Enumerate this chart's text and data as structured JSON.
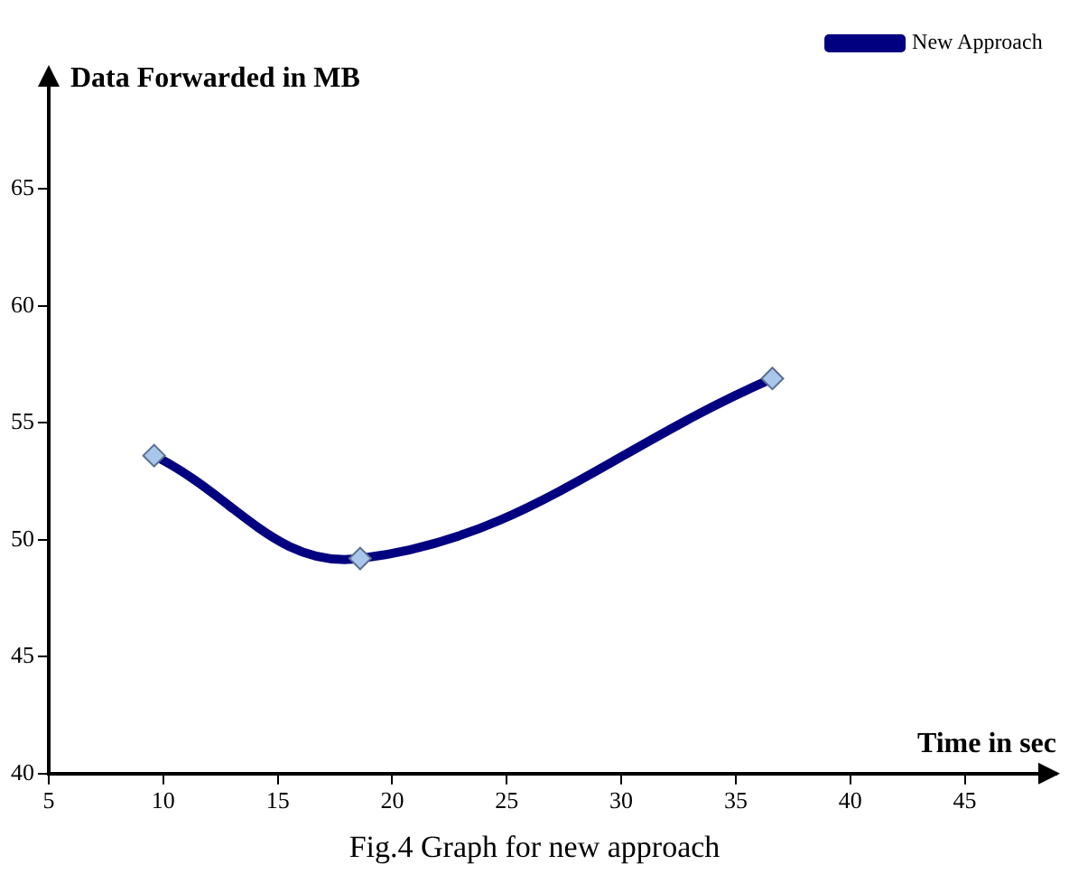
{
  "chart_data": {
    "type": "line",
    "xlabel": "Time in sec",
    "ylabel": "Data Forwarded in MB",
    "x": [
      9.6,
      18.6,
      36.6
    ],
    "series": [
      {
        "name": "New Approach",
        "color": "#000080",
        "values": [
          53.6,
          49.2,
          56.9
        ]
      }
    ],
    "xlim": [
      5,
      49
    ],
    "xticks": [
      5,
      10,
      15,
      20,
      25,
      30,
      35,
      40,
      45
    ],
    "ylim": [
      40,
      70
    ],
    "yticks": [
      40,
      45,
      50,
      55,
      60,
      65
    ],
    "grid": false,
    "legend": "top right",
    "marker": "diamond",
    "line_style": "solid",
    "annotations": [
      "Fig.4 Graph for new approach"
    ]
  }
}
